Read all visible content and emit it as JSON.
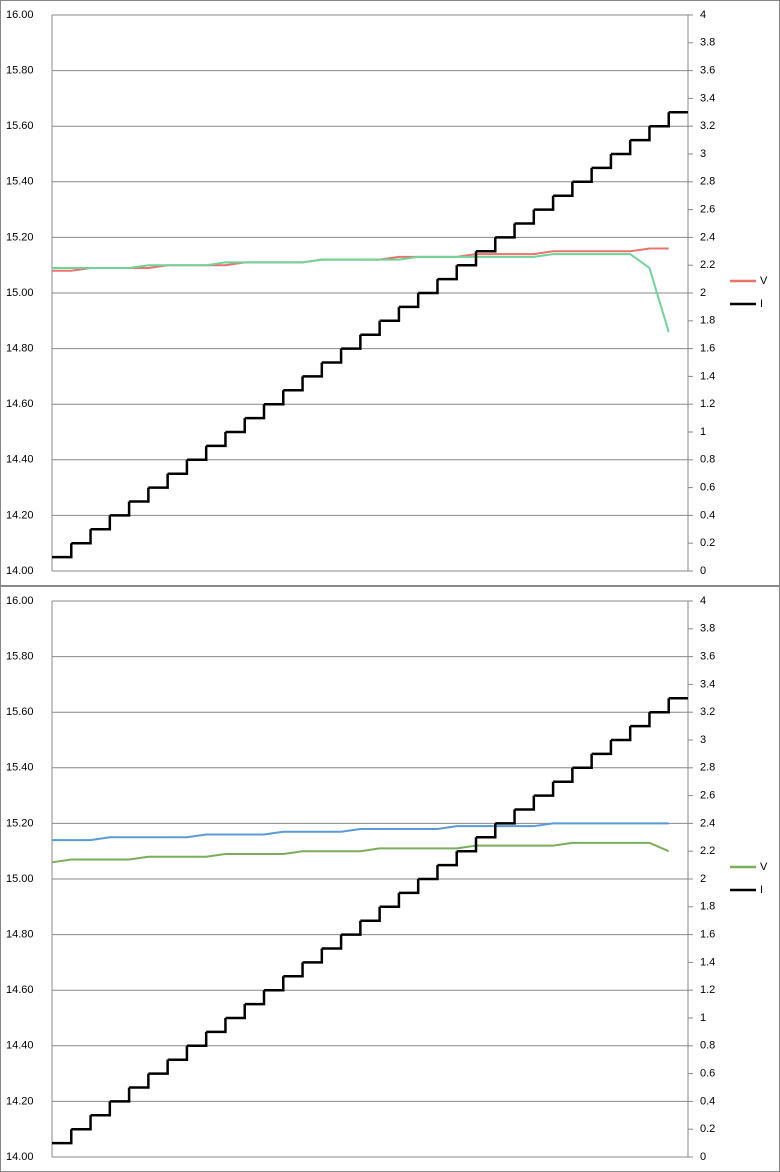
{
  "chart_data": [
    {
      "type": "line",
      "step_series": "I",
      "legend": "right",
      "grid": true,
      "ylim": [
        14,
        16
      ],
      "yticks": [
        {
          "value": 14,
          "label": "14.00"
        },
        {
          "value": 14.2,
          "label": "14.20"
        },
        {
          "value": 14.4,
          "label": "14.40"
        },
        {
          "value": 14.6,
          "label": "14.60"
        },
        {
          "value": 14.8,
          "label": "14.80"
        },
        {
          "value": 15,
          "label": "15.00"
        },
        {
          "value": 15.2,
          "label": "15.20"
        },
        {
          "value": 15.4,
          "label": "15.40"
        },
        {
          "value": 15.6,
          "label": "15.60"
        },
        {
          "value": 15.8,
          "label": "15.80"
        },
        {
          "value": 16,
          "label": "16.00"
        }
      ],
      "y2lim": [
        0,
        4
      ],
      "y2ticks": [
        0,
        0.2,
        0.4,
        0.6,
        0.8,
        1,
        1.2,
        1.4,
        1.6,
        1.8,
        2,
        2.2,
        2.4,
        2.6,
        2.8,
        3,
        3.2,
        3.4,
        3.6,
        3.8,
        4
      ],
      "series": [
        {
          "name": "V",
          "color": "#e8746a",
          "values": [
            15.08,
            15.08,
            15.09,
            15.09,
            15.09,
            15.09,
            15.1,
            15.1,
            15.1,
            15.1,
            15.11,
            15.11,
            15.11,
            15.11,
            15.12,
            15.12,
            15.12,
            15.12,
            15.13,
            15.13,
            15.13,
            15.13,
            15.14,
            15.14,
            15.14,
            15.14,
            15.15,
            15.15,
            15.15,
            15.15,
            15.15,
            15.16,
            15.16
          ]
        },
        {
          "color": "#6fd39a",
          "values": [
            15.09,
            15.09,
            15.09,
            15.09,
            15.09,
            15.1,
            15.1,
            15.1,
            15.1,
            15.11,
            15.11,
            15.11,
            15.11,
            15.11,
            15.12,
            15.12,
            15.12,
            15.12,
            15.12,
            15.13,
            15.13,
            15.13,
            15.13,
            15.13,
            15.13,
            15.13,
            15.14,
            15.14,
            15.14,
            15.14,
            15.14,
            15.09,
            14.86
          ]
        },
        {
          "name": "I",
          "color": "#000000",
          "axis": "y2",
          "values": [
            0.1,
            0.2,
            0.3,
            0.4,
            0.5,
            0.6,
            0.7,
            0.8,
            0.9,
            1.0,
            1.1,
            1.2,
            1.3,
            1.4,
            1.5,
            1.6,
            1.7,
            1.8,
            1.9,
            2.0,
            2.1,
            2.2,
            2.3,
            2.4,
            2.5,
            2.6,
            2.7,
            2.8,
            2.9,
            3.0,
            3.1,
            3.2,
            3.3
          ]
        }
      ]
    },
    {
      "type": "line",
      "step_series": "I",
      "legend": "right",
      "grid": true,
      "ylim": [
        14,
        16
      ],
      "yticks": [
        {
          "value": 14,
          "label": "14.00"
        },
        {
          "value": 14.2,
          "label": "14.20"
        },
        {
          "value": 14.4,
          "label": "14.40"
        },
        {
          "value": 14.6,
          "label": "14.60"
        },
        {
          "value": 14.8,
          "label": "14.80"
        },
        {
          "value": 15,
          "label": "15.00"
        },
        {
          "value": 15.2,
          "label": "15.20"
        },
        {
          "value": 15.4,
          "label": "15.40"
        },
        {
          "value": 15.6,
          "label": "15.60"
        },
        {
          "value": 15.8,
          "label": "15.80"
        },
        {
          "value": 16,
          "label": "16.00"
        }
      ],
      "y2lim": [
        0,
        4
      ],
      "y2ticks": [
        0,
        0.2,
        0.4,
        0.6,
        0.8,
        1,
        1.2,
        1.4,
        1.6,
        1.8,
        2,
        2.2,
        2.4,
        2.6,
        2.8,
        3,
        3.2,
        3.4,
        3.6,
        3.8,
        4
      ],
      "series": [
        {
          "name": "V",
          "color": "#7aae5a",
          "values": [
            15.06,
            15.07,
            15.07,
            15.07,
            15.07,
            15.08,
            15.08,
            15.08,
            15.08,
            15.09,
            15.09,
            15.09,
            15.09,
            15.1,
            15.1,
            15.1,
            15.1,
            15.11,
            15.11,
            15.11,
            15.11,
            15.11,
            15.12,
            15.12,
            15.12,
            15.12,
            15.12,
            15.13,
            15.13,
            15.13,
            15.13,
            15.13,
            15.1
          ]
        },
        {
          "color": "#5b9bd5",
          "values": [
            15.14,
            15.14,
            15.14,
            15.15,
            15.15,
            15.15,
            15.15,
            15.15,
            15.16,
            15.16,
            15.16,
            15.16,
            15.17,
            15.17,
            15.17,
            15.17,
            15.18,
            15.18,
            15.18,
            15.18,
            15.18,
            15.19,
            15.19,
            15.19,
            15.19,
            15.19,
            15.2,
            15.2,
            15.2,
            15.2,
            15.2,
            15.2,
            15.2
          ]
        },
        {
          "name": "I",
          "color": "#000000",
          "axis": "y2",
          "values": [
            0.1,
            0.2,
            0.3,
            0.4,
            0.5,
            0.6,
            0.7,
            0.8,
            0.9,
            1.0,
            1.1,
            1.2,
            1.3,
            1.4,
            1.5,
            1.6,
            1.7,
            1.8,
            1.9,
            2.0,
            2.1,
            2.2,
            2.3,
            2.4,
            2.5,
            2.6,
            2.7,
            2.8,
            2.9,
            3.0,
            3.1,
            3.2,
            3.3
          ]
        }
      ]
    }
  ]
}
